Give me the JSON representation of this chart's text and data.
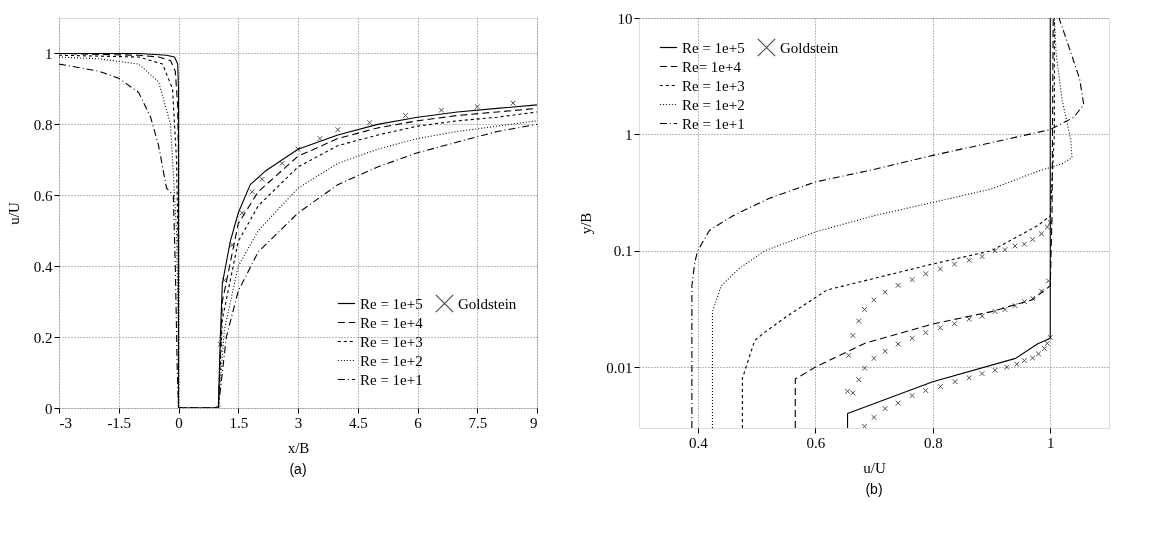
{
  "chart_data": [
    {
      "type": "line",
      "xlabel": "x/B",
      "ylabel": "u/U",
      "xlim": [
        -3,
        9
      ],
      "ylim": [
        0,
        1.1
      ],
      "xticks": [
        -3,
        -1.5,
        0,
        1.5,
        3,
        4.5,
        6,
        7.5,
        9
      ],
      "yticks": [
        0,
        0.2,
        0.4,
        0.6,
        0.8,
        1
      ],
      "grid": true,
      "legend": "bottom right",
      "annotations": [
        "(a)"
      ],
      "series": [
        {
          "name": "Re = 1e+5",
          "color": "#000000",
          "line_style": "solid",
          "x": [
            -3,
            -1,
            -0.3,
            -0.1,
            -0.02,
            0,
            0,
            1,
            1,
            1.05,
            1.1,
            1.3,
            1.5,
            1.8,
            2.2,
            3,
            4,
            5,
            6,
            7,
            8,
            9
          ],
          "values": [
            1.0,
            1.0,
            0.995,
            0.99,
            0.97,
            0.9,
            0,
            0,
            0,
            0.2,
            0.35,
            0.47,
            0.55,
            0.63,
            0.67,
            0.73,
            0.77,
            0.8,
            0.82,
            0.835,
            0.845,
            0.855
          ]
        },
        {
          "name": "Re = 1e+4",
          "color": "#000000",
          "line_style": "dashed",
          "x": [
            -3,
            -1,
            -0.5,
            -0.2,
            -0.08,
            -0.02,
            0,
            0,
            1,
            1,
            1.1,
            1.5,
            2,
            3,
            4,
            5,
            6,
            7,
            8,
            9
          ],
          "values": [
            1.0,
            0.995,
            0.99,
            0.98,
            0.95,
            0.85,
            0.7,
            0,
            0,
            0,
            0.3,
            0.52,
            0.61,
            0.71,
            0.76,
            0.79,
            0.81,
            0.825,
            0.835,
            0.845
          ]
        },
        {
          "name": "Re = 1e+3",
          "color": "#000000",
          "line_style": "shortdash",
          "x": [
            -3,
            -1,
            -0.4,
            -0.15,
            -0.05,
            0,
            0,
            1,
            1,
            1.1,
            1.5,
            2,
            3,
            4,
            5,
            6,
            7,
            8,
            9
          ],
          "values": [
            0.995,
            0.99,
            0.97,
            0.9,
            0.7,
            0.4,
            0,
            0,
            0,
            0.25,
            0.47,
            0.57,
            0.68,
            0.74,
            0.77,
            0.795,
            0.81,
            0.82,
            0.835
          ]
        },
        {
          "name": "Re = 1e+2",
          "color": "#000000",
          "line_style": "dotted",
          "x": [
            -3,
            -2,
            -1,
            -0.5,
            -0.2,
            -0.05,
            0,
            0,
            1,
            1,
            1.15,
            1.5,
            2,
            3,
            4,
            5,
            6,
            7,
            8,
            9
          ],
          "values": [
            0.99,
            0.985,
            0.97,
            0.92,
            0.8,
            0.5,
            0.2,
            0,
            0,
            0,
            0.22,
            0.4,
            0.5,
            0.62,
            0.69,
            0.73,
            0.76,
            0.78,
            0.795,
            0.81
          ]
        },
        {
          "name": "Re = 1e+1",
          "color": "#000000",
          "line_style": "dashdot",
          "x": [
            -3,
            -2,
            -1.5,
            -1,
            -0.7,
            -0.5,
            -0.3,
            -0.13,
            -0.08,
            -0.03,
            0,
            1,
            1,
            1.2,
            1.5,
            2,
            3,
            4,
            5,
            6,
            7,
            8,
            9
          ],
          "values": [
            0.97,
            0.95,
            0.93,
            0.89,
            0.82,
            0.74,
            0.62,
            0.6,
            0.4,
            0.1,
            0,
            0,
            0,
            0.2,
            0.33,
            0.44,
            0.55,
            0.63,
            0.68,
            0.72,
            0.75,
            0.78,
            0.8
          ]
        },
        {
          "name": "Goldstein",
          "color": "#000000",
          "type": "scatter",
          "marker": "cross",
          "x": [
            1,
            1.05,
            1.15,
            1.35,
            1.6,
            1.85,
            2.1,
            2.6,
            3,
            3.55,
            4,
            4.8,
            5.7,
            6.6,
            7.5,
            8.4
          ],
          "values": [
            0,
            0.18,
            0.36,
            0.46,
            0.55,
            0.61,
            0.645,
            0.69,
            0.73,
            0.76,
            0.785,
            0.805,
            0.825,
            0.84,
            0.85,
            0.86
          ]
        }
      ]
    },
    {
      "type": "line",
      "xlabel": "u/U",
      "ylabel": "y/B",
      "xlim": [
        0.3,
        1.1
      ],
      "ylim": [
        0.003,
        10
      ],
      "log": "y",
      "xticks": [
        0.4,
        0.6,
        0.8,
        1
      ],
      "yticks": [
        0.01,
        0.1,
        1,
        10
      ],
      "grid": true,
      "legend": "top left",
      "annotations": [
        "(b)"
      ],
      "series": [
        {
          "name": "Re = 1e+5",
          "color": "#000000",
          "line_style": "solid",
          "x": [
            0.655,
            0.655,
            0.8,
            0.941,
            0.978,
            1.0,
            1.0
          ],
          "values": [
            0.003,
            0.004,
            0.0075,
            0.0119,
            0.0158,
            0.0177,
            10
          ]
        },
        {
          "name": "Re= 1e+4",
          "color": "#000000",
          "line_style": "dashed",
          "x": [
            0.566,
            0.566,
            0.6,
            0.684,
            0.8,
            0.9,
            0.97,
            1.0,
            1.003,
            1.005
          ],
          "values": [
            0.003,
            0.0079,
            0.01,
            0.016,
            0.0235,
            0.03,
            0.038,
            0.05,
            0.2,
            10
          ]
        },
        {
          "name": "Re = 1e+3",
          "color": "#000000",
          "line_style": "shortdash",
          "x": [
            0.476,
            0.476,
            0.497,
            0.52,
            0.55,
            0.62,
            0.8,
            0.9,
            0.98,
            1.0,
            1.007,
            1.007
          ],
          "values": [
            0.003,
            0.008,
            0.017,
            0.021,
            0.027,
            0.046,
            0.077,
            0.1,
            0.166,
            0.2,
            1,
            10
          ]
        },
        {
          "name": "Re = 1e+2",
          "color": "#000000",
          "line_style": "dotted",
          "x": [
            0.425,
            0.425,
            0.44,
            0.47,
            0.514,
            0.6,
            0.7,
            0.8,
            0.9,
            0.978,
            1.02,
            1.037,
            1.035,
            1.02,
            1.01,
            1.007
          ],
          "values": [
            0.003,
            0.03,
            0.05,
            0.07,
            0.1,
            0.145,
            0.2,
            0.26,
            0.34,
            0.48,
            0.56,
            0.63,
            0.9,
            2,
            5,
            10
          ]
        },
        {
          "name": "Re = 1e+1",
          "color": "#000000",
          "line_style": "dashdot",
          "x": [
            0.39,
            0.39,
            0.395,
            0.4,
            0.42,
            0.46,
            0.52,
            0.6,
            0.7,
            0.8,
            0.9,
            1.0,
            1.04,
            1.057,
            1.05,
            1.03,
            1.015
          ],
          "values": [
            0.003,
            0.05,
            0.08,
            0.1,
            0.15,
            0.2,
            0.28,
            0.39,
            0.5,
            0.66,
            0.85,
            1.1,
            1.4,
            1.8,
            3,
            6,
            10
          ]
        },
        {
          "name": "Goldstein",
          "color": "#000000",
          "type": "scatter",
          "marker": "cross",
          "x": [
            0.684,
            0.7,
            0.719,
            0.741,
            0.765,
            0.788,
            0.813,
            0.838,
            0.862,
            0.884,
            0.906,
            0.926,
            0.943,
            0.956,
            0.97,
            0.98,
            0.99,
            0.995,
            1.0,
            0.655,
            0.664,
            0.674,
            0.684,
            0.7,
            0.719,
            0.741,
            0.765,
            0.788,
            0.813,
            0.837,
            0.862,
            0.884,
            0.906,
            0.923,
            0.94,
            0.956,
            0.97,
            0.985,
            0.997,
            0.657,
            0.664,
            0.674,
            0.684,
            0.7,
            0.719,
            0.741,
            0.765,
            0.788,
            0.813,
            0.837,
            0.862,
            0.884,
            0.906,
            0.923,
            0.94,
            0.956,
            0.97,
            0.985,
            0.995,
            1.0
          ],
          "values": [
            0.0031,
            0.0037,
            0.0044,
            0.0049,
            0.0057,
            0.0063,
            0.0068,
            0.0075,
            0.0081,
            0.0088,
            0.0094,
            0.01,
            0.0106,
            0.0114,
            0.012,
            0.013,
            0.0145,
            0.016,
            0.018,
            0.0062,
            0.006,
            0.0078,
            0.0098,
            0.0119,
            0.0137,
            0.0158,
            0.0177,
            0.0198,
            0.0218,
            0.0236,
            0.0259,
            0.0274,
            0.0301,
            0.0313,
            0.0338,
            0.0365,
            0.039,
            0.045,
            0.055,
            0.0126,
            0.0187,
            0.0249,
            0.0313,
            0.0379,
            0.0441,
            0.0504,
            0.0565,
            0.0634,
            0.0698,
            0.0767,
            0.0828,
            0.0892,
            0.1,
            0.102,
            0.11,
            0.114,
            0.125,
            0.14,
            0.16,
            0.175
          ]
        }
      ]
    }
  ]
}
